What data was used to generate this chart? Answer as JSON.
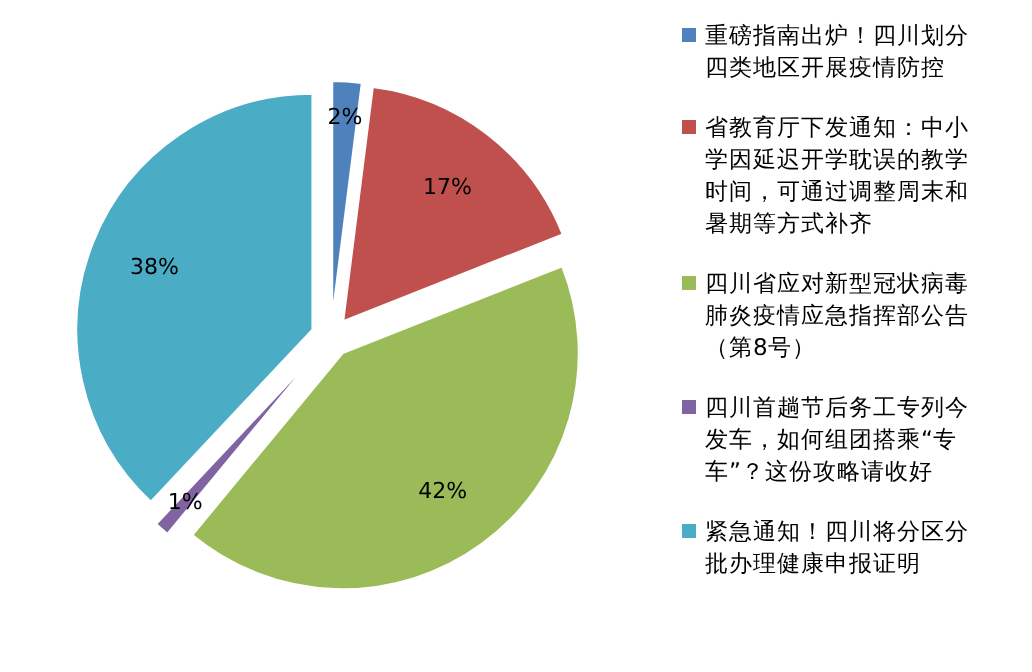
{
  "chart_data": {
    "type": "pie",
    "categories": [
      "重磅指南出炉！四川划分四类地区开展疫情防控",
      "省教育厅下发通知：中小学因延迟开学耽误的教学时间，可通过调整周末和暑期等方式补齐",
      "四川省应对新型冠状病毒肺炎疫情应急指挥部公告（第8号）",
      "四川首趟节后务工专列今发车，如何组团搭乘“专车”？这份攻略请收好",
      "紧急通知！四川将分区分批办理健康申报证明"
    ],
    "values": [
      2,
      17,
      42,
      1,
      38
    ],
    "colors": [
      "#4f81bd",
      "#c0504d",
      "#9bbb59",
      "#8064a2",
      "#4bacc6"
    ],
    "value_labels": [
      "2%",
      "17%",
      "42%",
      "1%",
      "38%"
    ],
    "legend": "right"
  }
}
